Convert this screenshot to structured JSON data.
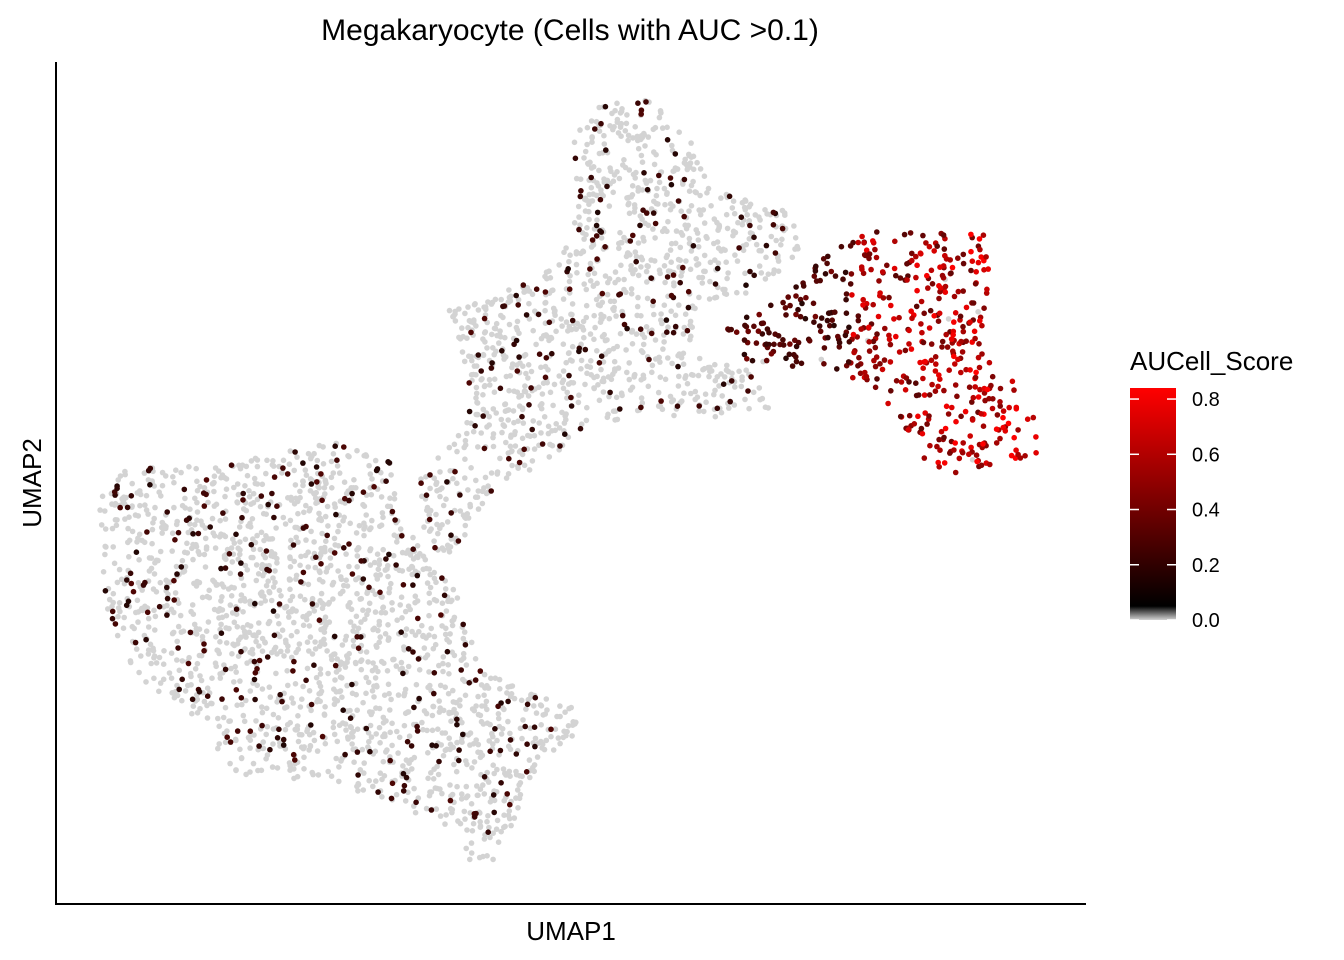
{
  "chart_data": {
    "type": "scatter",
    "title": "Megakaryocyte (Cells with AUC >0.1)",
    "xlabel": "UMAP1",
    "ylabel": "UMAP2",
    "axis_ticks_shown": false,
    "grid": false,
    "color_scale": {
      "title": "AUCell_Score",
      "min": 0.0,
      "max": 0.84,
      "ticks": [
        "0.0",
        "0.2",
        "0.4",
        "0.6",
        "0.8"
      ],
      "tick_values": [
        0.0,
        0.2,
        0.4,
        0.6,
        0.8
      ],
      "stops": [
        {
          "value": 0.0,
          "color": "#d3d3d3"
        },
        {
          "value": 0.05,
          "color": "#000000"
        },
        {
          "value": 0.84,
          "color": "#ff0000"
        }
      ],
      "legend_position": "right"
    },
    "below_threshold_color": "#d3d3d3",
    "highlight_cluster_colors": [
      "#000000",
      "#4a0a05",
      "#8b0000",
      "#ff0000"
    ]
  }
}
